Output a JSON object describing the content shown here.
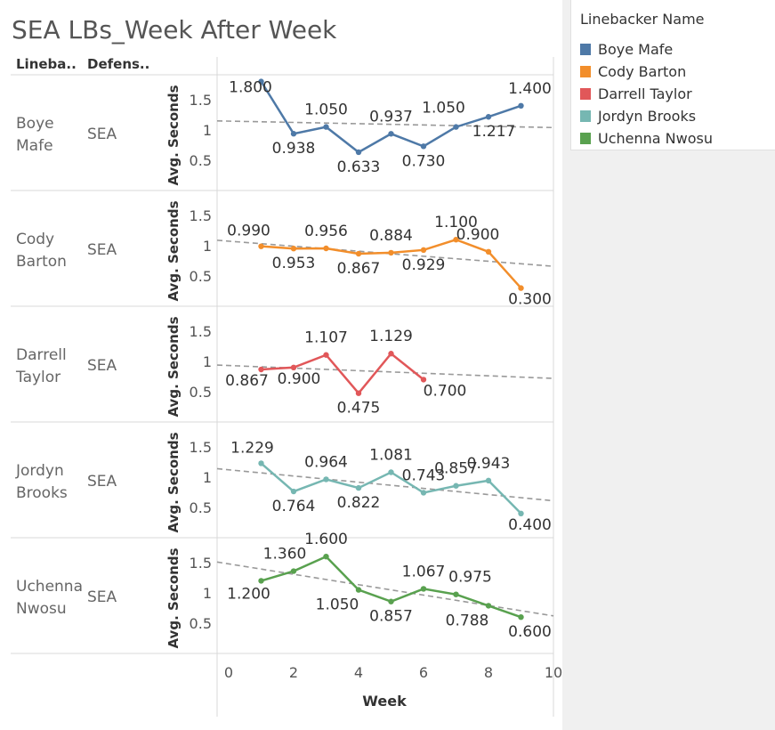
{
  "title": "SEA LBs_Week After Week",
  "headers": {
    "linebacker": "Lineba..",
    "defense": "Defens.."
  },
  "legend": {
    "title": "Linebacker Name",
    "items": [
      {
        "label": "Boye Mafe",
        "color": "#4e79a7"
      },
      {
        "label": "Cody Barton",
        "color": "#f28e2b"
      },
      {
        "label": "Darrell Taylor",
        "color": "#e15759"
      },
      {
        "label": "Jordyn Brooks",
        "color": "#76b7b2"
      },
      {
        "label": "Uchenna Nwosu",
        "color": "#59a14f"
      }
    ]
  },
  "chart_data": {
    "type": "line",
    "xlabel": "Week",
    "ylabel": "Avg. Seconds",
    "xlim": [
      0,
      10
    ],
    "xticks": [
      0,
      2,
      4,
      6,
      8,
      10
    ],
    "yticks": [
      0.5,
      1,
      1.5
    ],
    "trend_lines": true,
    "series": [
      {
        "name": "Boye Mafe",
        "name_lines": [
          "Boye",
          "Mafe"
        ],
        "team": "SEA",
        "color": "#4e79a7",
        "x": [
          1,
          2,
          3,
          4,
          5,
          6,
          7,
          8,
          9
        ],
        "values": [
          1.8,
          0.938,
          1.05,
          0.633,
          0.937,
          0.73,
          1.05,
          1.217,
          1.4
        ],
        "labels": [
          "1.800",
          "0.938",
          "1.050",
          "0.633",
          "0.937",
          "0.730",
          "1.050",
          "1.217",
          "1.400"
        ],
        "trend": [
          1.15,
          1.04
        ]
      },
      {
        "name": "Cody Barton",
        "name_lines": [
          "Cody",
          "Barton"
        ],
        "team": "SEA",
        "color": "#f28e2b",
        "x": [
          1,
          2,
          3,
          4,
          5,
          6,
          7,
          8,
          9
        ],
        "values": [
          0.99,
          0.953,
          0.956,
          0.867,
          0.884,
          0.929,
          1.1,
          0.9,
          0.3
        ],
        "labels": [
          "0.990",
          "0.953",
          "0.956",
          "0.867",
          "0.884",
          "0.929",
          "1.100",
          "0.900",
          "0.300"
        ],
        "trend": [
          1.09,
          0.66
        ]
      },
      {
        "name": "Darrell Taylor",
        "name_lines": [
          "Darrell",
          "Taylor"
        ],
        "team": "SEA",
        "color": "#e15759",
        "x": [
          1,
          2,
          3,
          4,
          5,
          6
        ],
        "values": [
          0.867,
          0.9,
          1.107,
          0.475,
          1.129,
          0.7
        ],
        "labels": [
          "0.867",
          "0.900",
          "1.107",
          "0.475",
          "1.129",
          "0.700"
        ],
        "trend": [
          0.94,
          0.72
        ]
      },
      {
        "name": "Jordyn Brooks",
        "name_lines": [
          "Jordyn",
          "Brooks"
        ],
        "team": "SEA",
        "color": "#76b7b2",
        "x": [
          1,
          2,
          3,
          4,
          5,
          6,
          7,
          8,
          9
        ],
        "values": [
          1.229,
          0.764,
          0.964,
          0.822,
          1.081,
          0.743,
          0.857,
          0.943,
          0.4
        ],
        "labels": [
          "1.229",
          "0.764",
          "0.964",
          "0.822",
          "1.081",
          "0.743",
          "0.857",
          "0.943",
          "0.400"
        ],
        "trend": [
          1.14,
          0.61
        ]
      },
      {
        "name": "Uchenna Nwosu",
        "name_lines": [
          "Uchenna",
          "Nwosu"
        ],
        "team": "SEA",
        "color": "#59a14f",
        "x": [
          1,
          2,
          3,
          4,
          5,
          6,
          7,
          8,
          9
        ],
        "values": [
          1.2,
          1.36,
          1.6,
          1.05,
          0.857,
          1.067,
          0.975,
          0.788,
          0.6
        ],
        "labels": [
          "1.200",
          "1.360",
          "1.600",
          "1.050",
          "0.857",
          "1.067",
          "0.975",
          "0.788",
          "0.600"
        ],
        "trend": [
          1.51,
          0.62
        ]
      }
    ]
  }
}
